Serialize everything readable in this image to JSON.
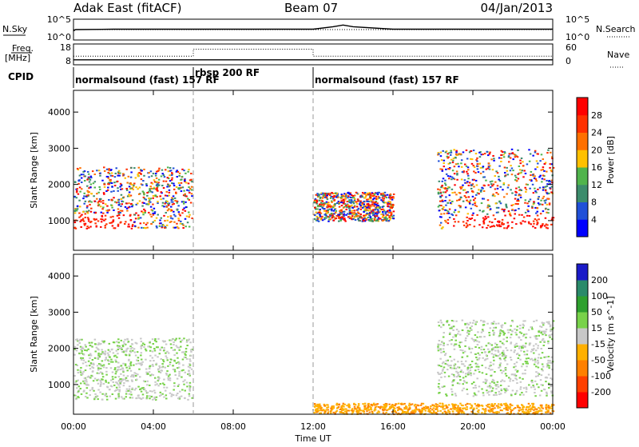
{
  "header": {
    "station": "Adak East (fitACF)",
    "beam": "Beam 07",
    "date": "04/Jan/2013"
  },
  "panels": {
    "nsky": {
      "label": "N.Sky",
      "ticks_left": [
        "10^5",
        "10^0"
      ],
      "ticks_right": [
        "10^5",
        "10^0"
      ],
      "right_label": "N.Search"
    },
    "freq": {
      "label_top": "Freq.",
      "label_bottom": "[MHz]",
      "ticks_left": [
        "18",
        "8"
      ],
      "ticks_right": [
        "60",
        "0"
      ],
      "right_label": "Nave"
    },
    "cpid": {
      "label": "CPID",
      "segments": [
        {
          "text": "normalsound (fast) 157 RF",
          "start_hour": 0,
          "end_hour": 6
        },
        {
          "text": "rbsp 200 RF",
          "start_hour": 6,
          "end_hour": 12
        },
        {
          "text": "normalsound (fast) 157 RF",
          "start_hour": 12,
          "end_hour": 24
        }
      ]
    }
  },
  "axes": {
    "xlabel": "Time UT",
    "xticks": [
      "00:00",
      "04:00",
      "08:00",
      "12:00",
      "16:00",
      "20:00",
      "00:00"
    ],
    "xtick_hours": [
      0,
      4,
      8,
      12,
      16,
      20,
      24
    ],
    "ylabel": "Slant Range [km]",
    "yticks": [
      "1000",
      "2000",
      "3000",
      "4000"
    ],
    "ytick_values": [
      1000,
      2000,
      3000,
      4000
    ],
    "ylim": [
      180,
      4600
    ]
  },
  "colorbars": {
    "power": {
      "label": "Power [dB]",
      "ticks": [
        "4",
        "8",
        "12",
        "16",
        "20",
        "24",
        "28"
      ],
      "colors": [
        "#0000ff",
        "#2050d8",
        "#3c8c6c",
        "#50b44c",
        "#ffc000",
        "#ff7000",
        "#ff3000",
        "#ff0000"
      ]
    },
    "velocity": {
      "label": "Velocity [m s^-1]",
      "ticks": [
        "200",
        "100",
        "50",
        "15",
        "-15",
        "-50",
        "-100",
        "-200"
      ],
      "colors": [
        "#1a1ac8",
        "#2a8a6a",
        "#2ea02e",
        "#78d24a",
        "#c8c8c8",
        "#ffb000",
        "#ff8000",
        "#ff4000",
        "#ff0000"
      ]
    }
  },
  "chart_data": [
    {
      "type": "line",
      "title": "Adak East (fitACF)  Beam 07  04/Jan/2013",
      "series": [
        {
          "name": "N.Sky",
          "x": [
            0,
            0.1,
            2,
            6,
            12,
            13,
            13.5,
            14,
            16,
            20,
            24
          ],
          "values": [
            2.2,
            2.5,
            2.6,
            2.6,
            2.6,
            3.2,
            3.6,
            3.2,
            2.6,
            2.6,
            2.6
          ]
        },
        {
          "name": "N.Search",
          "x": [
            0,
            0.1,
            24
          ],
          "values": [
            2.5,
            2.5,
            2.5
          ]
        }
      ],
      "xlabel": "",
      "ylabel": "",
      "xlim": [
        0,
        24
      ]
    },
    {
      "type": "line",
      "series": [
        {
          "name": "Freq.",
          "x": [
            0,
            24
          ],
          "values": [
            10.4,
            10.4
          ]
        },
        {
          "name": "Nave",
          "x": [
            0,
            6,
            6,
            12,
            12,
            24
          ],
          "values": [
            25,
            25,
            45,
            45,
            25,
            25
          ]
        }
      ],
      "xlim": [
        0,
        24
      ]
    },
    {
      "type": "heatmap",
      "ylabel": "Slant Range [km]",
      "xlabel": "Time UT",
      "xlim": [
        0,
        24
      ],
      "ylim": [
        180,
        4600
      ],
      "colorbar_label": "Power [dB]",
      "regions": [
        {
          "x_range": [
            0,
            5.9
          ],
          "y_range": [
            800,
            2500
          ],
          "note": "scatter with bands near 1000 and 1800 km"
        },
        {
          "x_range": [
            12,
            16
          ],
          "y_range": [
            1000,
            1800
          ],
          "note": "weak scatter"
        },
        {
          "x_range": [
            18.2,
            24
          ],
          "y_range": [
            800,
            3000
          ],
          "note": "scatter with strong band near 1000 km"
        }
      ]
    },
    {
      "type": "heatmap",
      "ylabel": "Slant Range [km]",
      "xlabel": "Time UT",
      "xlim": [
        0,
        24
      ],
      "ylim": [
        180,
        4600
      ],
      "colorbar_label": "Velocity [m s^-1]",
      "regions": [
        {
          "x_range": [
            0,
            5.9
          ],
          "y_range": [
            600,
            2300
          ],
          "note": "mostly grey ground scatter with green"
        },
        {
          "x_range": [
            12,
            24
          ],
          "y_range": [
            200,
            500
          ],
          "note": "orange near-range scatter"
        },
        {
          "x_range": [
            18.2,
            24
          ],
          "y_range": [
            700,
            2800
          ],
          "note": "grey and green scatter"
        }
      ]
    }
  ]
}
